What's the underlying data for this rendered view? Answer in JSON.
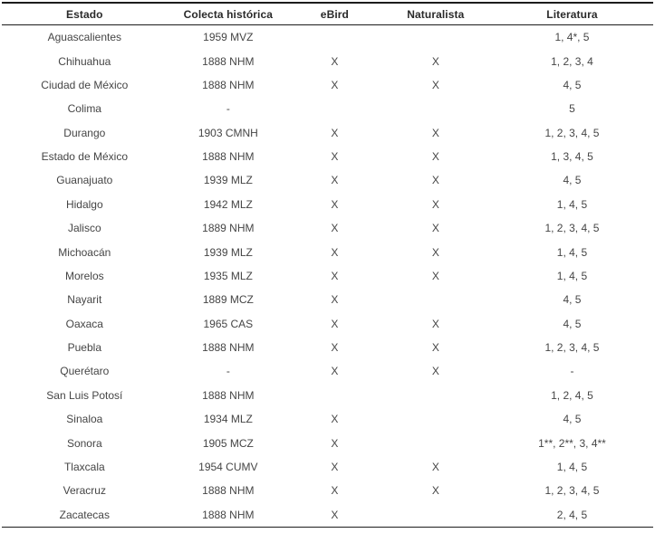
{
  "table": {
    "columns": [
      "Estado",
      "Colecta histórica",
      "eBird",
      "Naturalista",
      "Literatura"
    ],
    "rows": [
      {
        "estado": "Aguascalientes",
        "colecta": "1959 MVZ",
        "ebird": "",
        "naturalista": "",
        "literatura": "1, 4*, 5"
      },
      {
        "estado": "Chihuahua",
        "colecta": "1888 NHM",
        "ebird": "X",
        "naturalista": "X",
        "literatura": "1, 2, 3, 4"
      },
      {
        "estado": "Ciudad de México",
        "colecta": "1888 NHM",
        "ebird": "X",
        "naturalista": "X",
        "literatura": "4, 5"
      },
      {
        "estado": "Colima",
        "colecta": "-",
        "ebird": "",
        "naturalista": "",
        "literatura": "5"
      },
      {
        "estado": "Durango",
        "colecta": "1903 CMNH",
        "ebird": "X",
        "naturalista": "X",
        "literatura": "1, 2, 3, 4, 5"
      },
      {
        "estado": "Estado de México",
        "colecta": "1888 NHM",
        "ebird": "X",
        "naturalista": "X",
        "literatura": "1, 3, 4, 5"
      },
      {
        "estado": "Guanajuato",
        "colecta": "1939 MLZ",
        "ebird": "X",
        "naturalista": "X",
        "literatura": "4, 5"
      },
      {
        "estado": "Hidalgo",
        "colecta": "1942 MLZ",
        "ebird": "X",
        "naturalista": "X",
        "literatura": "1, 4, 5"
      },
      {
        "estado": "Jalisco",
        "colecta": "1889 NHM",
        "ebird": "X",
        "naturalista": "X",
        "literatura": "1, 2, 3, 4, 5"
      },
      {
        "estado": "Michoacán",
        "colecta": "1939 MLZ",
        "ebird": "X",
        "naturalista": "X",
        "literatura": "1, 4, 5"
      },
      {
        "estado": "Morelos",
        "colecta": "1935 MLZ",
        "ebird": "X",
        "naturalista": "X",
        "literatura": "1, 4, 5"
      },
      {
        "estado": "Nayarit",
        "colecta": "1889 MCZ",
        "ebird": "X",
        "naturalista": "",
        "literatura": "4, 5"
      },
      {
        "estado": "Oaxaca",
        "colecta": "1965 CAS",
        "ebird": "X",
        "naturalista": "X",
        "literatura": "4, 5"
      },
      {
        "estado": "Puebla",
        "colecta": "1888 NHM",
        "ebird": "X",
        "naturalista": "X",
        "literatura": "1, 2, 3, 4, 5"
      },
      {
        "estado": "Querétaro",
        "colecta": "-",
        "ebird": "X",
        "naturalista": "X",
        "literatura": "-"
      },
      {
        "estado": "San Luis Potosí",
        "colecta": "1888 NHM",
        "ebird": "",
        "naturalista": "",
        "literatura": "1, 2, 4, 5"
      },
      {
        "estado": "Sinaloa",
        "colecta": "1934 MLZ",
        "ebird": "X",
        "naturalista": "",
        "literatura": "4, 5"
      },
      {
        "estado": "Sonora",
        "colecta": "1905 MCZ",
        "ebird": "X",
        "naturalista": "",
        "literatura": "1**, 2**, 3, 4**"
      },
      {
        "estado": "Tlaxcala",
        "colecta": "1954 CUMV",
        "ebird": "X",
        "naturalista": "X",
        "literatura": "1, 4, 5"
      },
      {
        "estado": "Veracruz",
        "colecta": "1888 NHM",
        "ebird": "X",
        "naturalista": "X",
        "literatura": "1, 2, 3, 4, 5"
      },
      {
        "estado": "Zacatecas",
        "colecta": "1888 NHM",
        "ebird": "X",
        "naturalista": "",
        "literatura": "2, 4, 5"
      }
    ]
  },
  "colors": {
    "background": "#ffffff",
    "body_text": "#454545",
    "header_text": "#2a2a2a",
    "rule": "#1c1c1c"
  }
}
